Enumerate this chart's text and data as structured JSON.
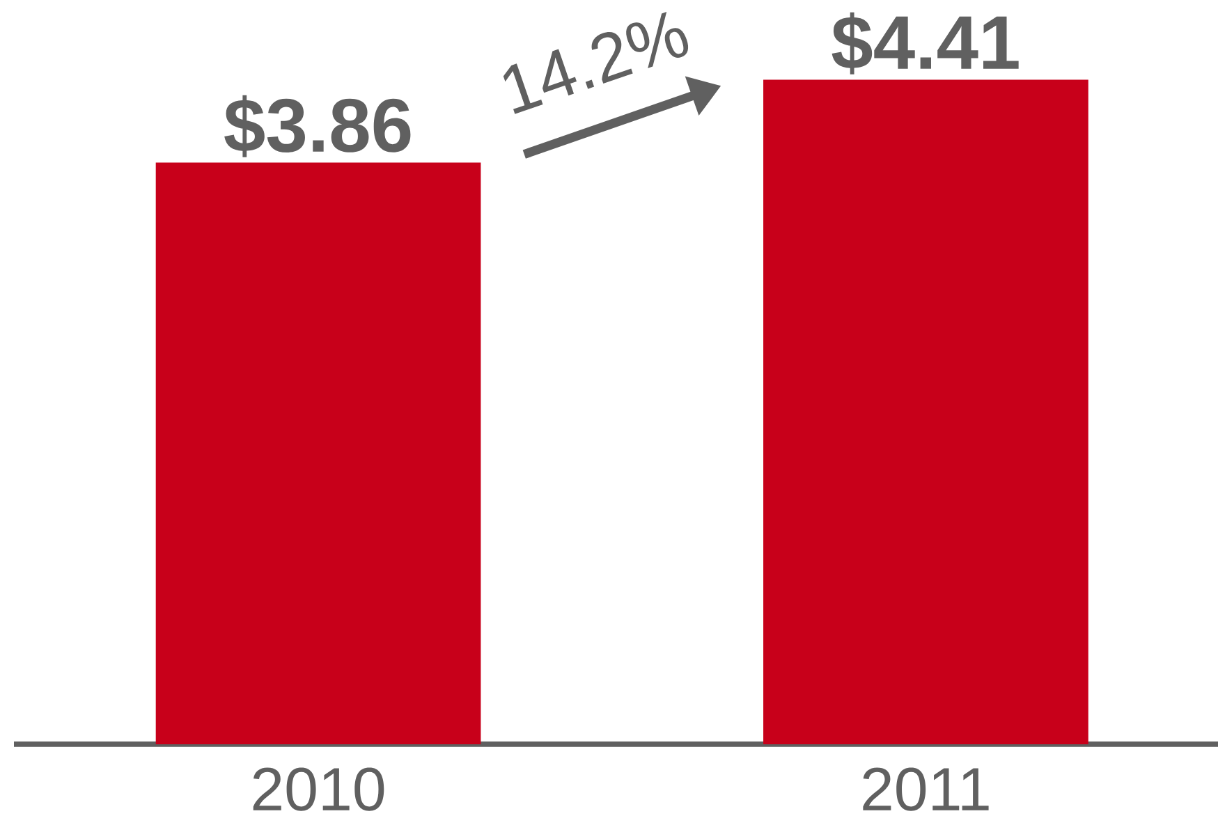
{
  "chart_data": {
    "type": "bar",
    "categories": [
      "2010",
      "2011"
    ],
    "values": [
      3.86,
      4.41
    ],
    "value_labels": [
      "$3.86",
      "$4.41"
    ],
    "color": "#c8001a",
    "tick_labels": "x",
    "grid": false,
    "annotations": [
      "14.2%"
    ]
  }
}
